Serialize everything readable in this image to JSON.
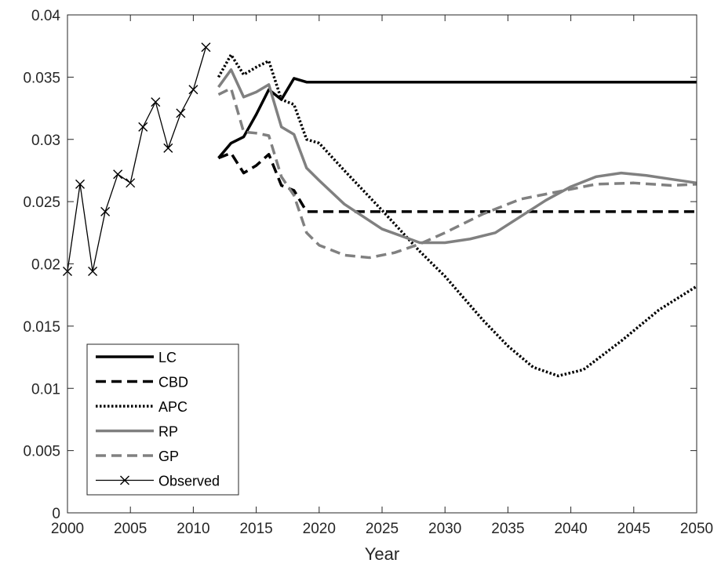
{
  "chart_data": {
    "type": "line",
    "title": "",
    "xlabel": "Year",
    "ylabel": "",
    "xlim": [
      2000,
      2050
    ],
    "ylim": [
      0,
      0.04
    ],
    "xticks": [
      2000,
      2005,
      2010,
      2015,
      2020,
      2025,
      2030,
      2035,
      2040,
      2045,
      2050
    ],
    "xtick_labels": [
      "2000",
      "2005",
      "2010",
      "2015",
      "2020",
      "2025",
      "2030",
      "2035",
      "2040",
      "2045",
      "2050"
    ],
    "yticks": [
      0,
      0.005,
      0.01,
      0.015,
      0.02,
      0.025,
      0.03,
      0.035,
      0.04
    ],
    "ytick_labels": [
      "0",
      "0.005",
      "0.01",
      "0.015",
      "0.02",
      "0.025",
      "0.03",
      "0.035",
      "0.04"
    ],
    "grid": false,
    "legend_position": "bottom-left",
    "series": [
      {
        "name": "LC",
        "color": "#000000",
        "style": "solid-thick",
        "x": [
          2012,
          2013,
          2014,
          2015,
          2016,
          2017,
          2018,
          2019,
          2020,
          2030,
          2040,
          2050
        ],
        "y": [
          0.0285,
          0.0297,
          0.0302,
          0.032,
          0.034,
          0.0332,
          0.0349,
          0.0346,
          0.0346,
          0.0346,
          0.0346,
          0.0346
        ]
      },
      {
        "name": "CBD",
        "color": "#000000",
        "style": "dashed",
        "x": [
          2012,
          2013,
          2014,
          2015,
          2016,
          2017,
          2018,
          2019,
          2020,
          2030,
          2040,
          2050
        ],
        "y": [
          0.0285,
          0.0289,
          0.0273,
          0.0279,
          0.0288,
          0.0263,
          0.0259,
          0.0242,
          0.0242,
          0.0242,
          0.0242,
          0.0242
        ]
      },
      {
        "name": "APC",
        "color": "#000000",
        "style": "dotted",
        "x": [
          2012,
          2013,
          2014,
          2015,
          2016,
          2017,
          2018,
          2019,
          2020,
          2022,
          2025,
          2028,
          2030,
          2033,
          2035,
          2037,
          2039,
          2041,
          2044,
          2047,
          2050
        ],
        "y": [
          0.035,
          0.0368,
          0.0352,
          0.0358,
          0.0363,
          0.0332,
          0.0328,
          0.03,
          0.0297,
          0.0275,
          0.0243,
          0.021,
          0.019,
          0.0155,
          0.0134,
          0.0117,
          0.011,
          0.0115,
          0.0138,
          0.0163,
          0.0182
        ]
      },
      {
        "name": "RP",
        "color": "#808080",
        "style": "solid-thick",
        "x": [
          2012,
          2013,
          2014,
          2015,
          2016,
          2017,
          2018,
          2019,
          2020,
          2022,
          2025,
          2028,
          2030,
          2032,
          2034,
          2036,
          2038,
          2040,
          2042,
          2044,
          2046,
          2048,
          2050
        ],
        "y": [
          0.0342,
          0.0356,
          0.0334,
          0.0338,
          0.0344,
          0.031,
          0.0304,
          0.0277,
          0.0267,
          0.0248,
          0.0228,
          0.0217,
          0.0217,
          0.022,
          0.0225,
          0.0238,
          0.0251,
          0.0262,
          0.027,
          0.0273,
          0.0271,
          0.0268,
          0.0265
        ]
      },
      {
        "name": "GP",
        "color": "#808080",
        "style": "dashed",
        "x": [
          2012,
          2013,
          2014,
          2015,
          2016,
          2017,
          2018,
          2019,
          2020,
          2022,
          2024,
          2026,
          2028,
          2030,
          2033,
          2036,
          2039,
          2042,
          2045,
          2048,
          2050
        ],
        "y": [
          0.0336,
          0.0341,
          0.0306,
          0.0305,
          0.0303,
          0.027,
          0.0255,
          0.0225,
          0.0215,
          0.0207,
          0.0205,
          0.0209,
          0.0216,
          0.0225,
          0.024,
          0.0252,
          0.0258,
          0.0264,
          0.0265,
          0.0263,
          0.0264
        ]
      },
      {
        "name": "Observed",
        "color": "#000000",
        "style": "solid-thin-x-markers",
        "x": [
          2000,
          2001,
          2002,
          2003,
          2004,
          2005,
          2006,
          2007,
          2008,
          2009,
          2010,
          2011
        ],
        "y": [
          0.0194,
          0.0264,
          0.0194,
          0.0242,
          0.0272,
          0.0265,
          0.031,
          0.033,
          0.0293,
          0.0321,
          0.034,
          0.0374
        ]
      }
    ]
  }
}
